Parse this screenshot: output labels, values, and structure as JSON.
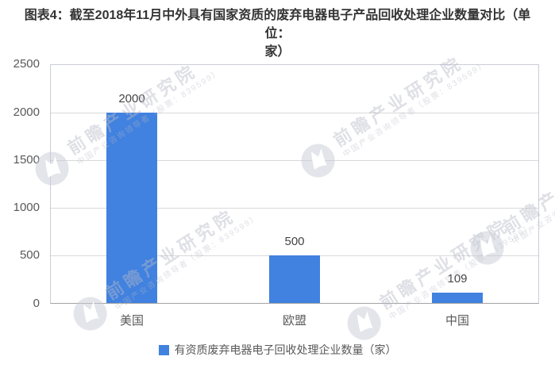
{
  "title": {
    "full": "图表4：截至2018年11月中外具有国家资质的废弃电器电子产品回收处理企业数量对比（单位：家）",
    "line1": "图表4：截至2018年11月中外具有国家资质的废弃电器电子产品回收处理企业数量对比（单位：",
    "line2": "家）"
  },
  "chart_data": {
    "type": "bar",
    "title": "图表4：截至2018年11月中外具有国家资质的废弃电器电子产品回收处理企业数量对比（单位：家）",
    "categories": [
      "美国",
      "欧盟",
      "中国"
    ],
    "values": [
      2000,
      500,
      109
    ],
    "series": [
      {
        "name": "有资质废弃电器电子回收处理企业数量（家）",
        "values": [
          2000,
          500,
          109
        ]
      }
    ],
    "xlabel": "",
    "ylabel": "",
    "ylim": [
      0,
      2500
    ],
    "yticks": [
      0,
      500,
      1000,
      1500,
      2000,
      2500
    ],
    "grid": true,
    "legend_position": "bottom",
    "bar_color": "#4181df"
  },
  "legend": {
    "swatch_color": "#4181df",
    "label": "有资质废弃电器电子回收处理企业数量（家）"
  },
  "watermark": {
    "brand": "前瞻产业研究院",
    "subtitle": "中国产业咨询领导者（股票：839599）",
    "logo": "qianzhan-swoosh-icon"
  },
  "colors": {
    "bar": "#4181df",
    "title_text": "#333333",
    "axis_text": "#595959",
    "value_text": "#444444",
    "gridline": "#d9d9d9",
    "plot_border": "#c9cdd7",
    "axis_line": "#a3a3a3",
    "watermark": "#b7bbc8",
    "background": "#ffffff"
  }
}
